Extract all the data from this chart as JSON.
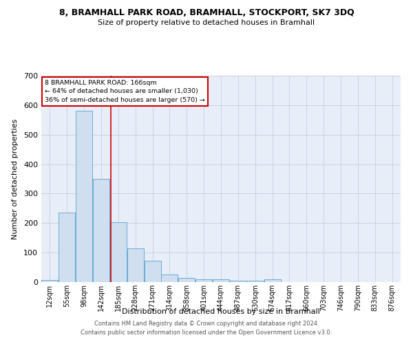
{
  "title": "8, BRAMHALL PARK ROAD, BRAMHALL, STOCKPORT, SK7 3DQ",
  "subtitle": "Size of property relative to detached houses in Bramhall",
  "xlabel": "Distribution of detached houses by size in Bramhall",
  "ylabel": "Number of detached properties",
  "footer_line1": "Contains HM Land Registry data © Crown copyright and database right 2024.",
  "footer_line2": "Contains public sector information licensed under the Open Government Licence v3.0.",
  "bar_color": "#cfdff0",
  "bar_edge_color": "#6aaad4",
  "grid_color": "#c8d4e4",
  "background_color": "#e8eef8",
  "property_line_color": "#cc0000",
  "annotation_box_edge_color": "#cc0000",
  "annotation_text_line1": "8 BRAMHALL PARK ROAD: 166sqm",
  "annotation_text_line2": "← 64% of detached houses are smaller (1,030)",
  "annotation_text_line3": "36% of semi-detached houses are larger (570) →",
  "property_line_x": 3.56,
  "categories": [
    "12sqm",
    "55sqm",
    "98sqm",
    "142sqm",
    "185sqm",
    "228sqm",
    "271sqm",
    "314sqm",
    "358sqm",
    "401sqm",
    "444sqm",
    "487sqm",
    "530sqm",
    "574sqm",
    "617sqm",
    "660sqm",
    "703sqm",
    "746sqm",
    "790sqm",
    "833sqm",
    "876sqm"
  ],
  "values": [
    8,
    235,
    580,
    350,
    203,
    115,
    72,
    25,
    15,
    10,
    10,
    5,
    5,
    10,
    0,
    0,
    0,
    0,
    0,
    0,
    0
  ],
  "ylim": [
    0,
    700
  ],
  "yticks": [
    0,
    100,
    200,
    300,
    400,
    500,
    600,
    700
  ]
}
